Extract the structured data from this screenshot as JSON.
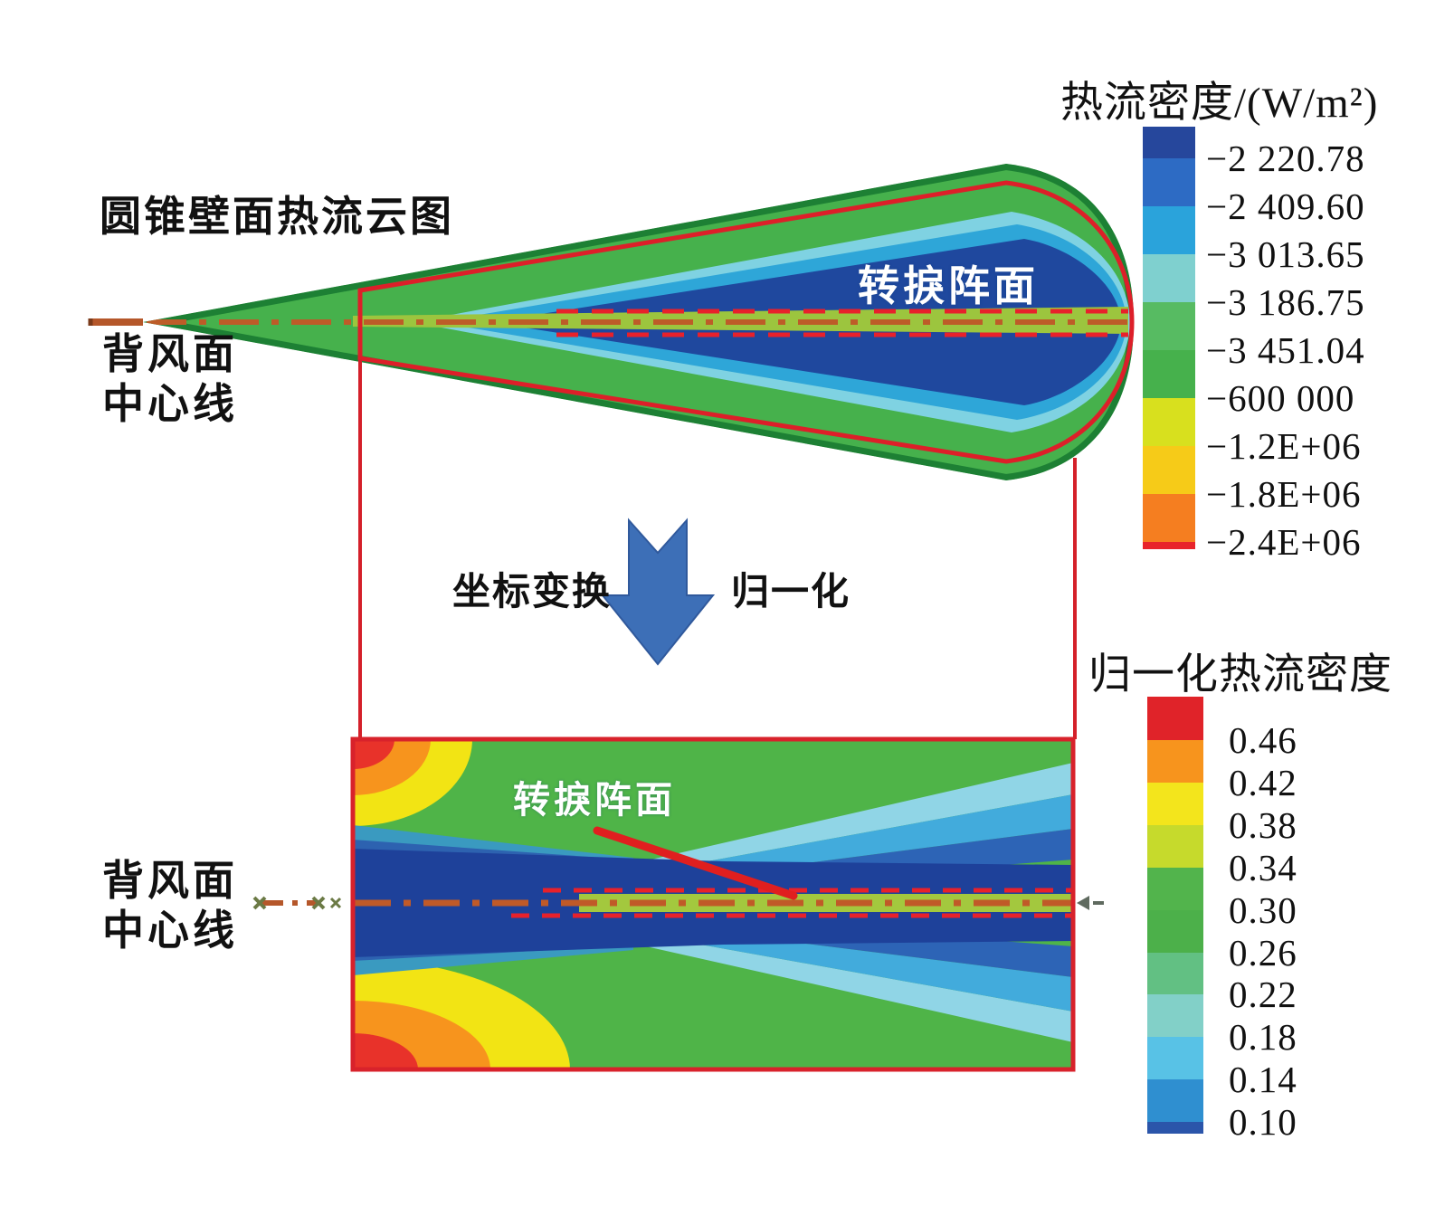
{
  "figure": {
    "plot1_title": "圆锥壁面热流云图",
    "arrow": {
      "left_label": "坐标变换",
      "right_label": "归一化"
    }
  },
  "labels": {
    "leeward_top": [
      "背风面",
      "中心线"
    ],
    "leeward_bottom": [
      "背风面",
      "中心线"
    ],
    "transition_cone": "转捩阵面",
    "transition_plot": "转捩阵面"
  },
  "colorbars": [
    {
      "id": "heat-flux",
      "title": "热流密度/(W/m²)",
      "ticks": [
        "−2 220.78",
        "−2 409.60",
        "−3 013.65",
        "−3 186.75",
        "−3 451.04",
        "−600 000",
        "−1.2E+06",
        "−1.8E+06",
        "−2.4E+06"
      ],
      "colors": [
        "#26479c",
        "#2d6bc4",
        "#2aa3db",
        "#7fd0cf",
        "#57bb62",
        "#46b14c",
        "#d8e01e",
        "#f6cb18",
        "#f57e20",
        "#e8242b"
      ],
      "tick_start": 0.075,
      "tick_end": 0.985
    },
    {
      "id": "normalized-heat-flux",
      "title": "归一化热流密度",
      "ticks": [
        "0.46",
        "0.42",
        "0.38",
        "0.34",
        "0.30",
        "0.26",
        "0.22",
        "0.18",
        "0.14",
        "0.10"
      ],
      "colors": [
        "#e02329",
        "#f7941d",
        "#f3e51c",
        "#c6da2c",
        "#52b44c",
        "#4cb04a",
        "#62c083",
        "#82d0c8",
        "#58c2e6",
        "#2f8fd0",
        "#2b55aa"
      ],
      "tick_start": 0.1,
      "tick_end": 0.975
    }
  ],
  "colors": {
    "accent_red": "#e8212b",
    "arrow_blue": "#3d6fb7",
    "centerline_brown": "#b5572a",
    "cone_green": "#46b14c",
    "contour_dark_blue": "#1f489e"
  },
  "chart_data": [
    {
      "type": "heatmap",
      "title": "圆锥壁面热流云图",
      "colorbar_title": "热流密度/(W/m²)",
      "colorbar_tick_labels": [
        "−2 220.78",
        "−2 409.60",
        "−3 013.65",
        "−3 186.75",
        "−3 451.04",
        "−600 000",
        "−1.2E+06",
        "−1.8E+06",
        "−2.4E+06"
      ],
      "colorbar_tick_values": [
        -2220.78,
        -2409.6,
        -3013.65,
        -3186.75,
        -3451.04,
        -600000,
        -1200000,
        -1800000,
        -2400000
      ],
      "legend_position": "right",
      "annotations": [
        "转捩阵面",
        "背风面 中心线"
      ]
    },
    {
      "type": "heatmap",
      "title": "归一化热流密度",
      "colorbar_title": "归一化热流密度",
      "colorbar_tick_values": [
        0.46,
        0.42,
        0.38,
        0.34,
        0.3,
        0.26,
        0.22,
        0.18,
        0.14,
        0.1
      ],
      "legend_position": "right",
      "annotations": [
        "转捩阵面",
        "背风面 中心线"
      ],
      "process_labels": [
        "坐标变换",
        "归一化"
      ]
    }
  ]
}
